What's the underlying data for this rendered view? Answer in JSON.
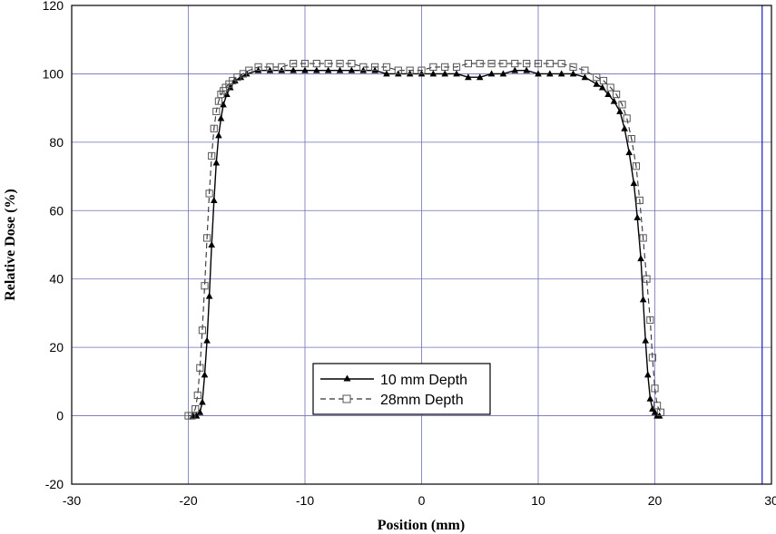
{
  "chart_data": {
    "type": "scatter",
    "title": "",
    "xlabel": "Position (mm)",
    "ylabel": "Relative Dose (%)",
    "xlim": [
      -30,
      30
    ],
    "ylim": [
      -20,
      120
    ],
    "xticks": [
      -30,
      -20,
      -10,
      0,
      10,
      20,
      30
    ],
    "yticks": [
      -20,
      0,
      20,
      40,
      60,
      80,
      100,
      120
    ],
    "grid": true,
    "grid_color": "#6f6fb8",
    "legend_position": "lower-center",
    "marker_line": {
      "x": 29.2
    },
    "series": [
      {
        "name": "10 mm Depth",
        "marker": "filled-triangle",
        "line": "solid",
        "color": "#000000",
        "x": [
          -19.6,
          -19.3,
          -19.0,
          -18.8,
          -18.6,
          -18.4,
          -18.2,
          -18.0,
          -17.8,
          -17.6,
          -17.4,
          -17.2,
          -17.0,
          -16.7,
          -16.4,
          -16.0,
          -15.5,
          -15.0,
          -14.0,
          -13.0,
          -12.0,
          -11.0,
          -10.0,
          -9.0,
          -8.0,
          -7.0,
          -6.0,
          -5.0,
          -4.0,
          -3.0,
          -2.0,
          -1.0,
          0.0,
          1.0,
          2.0,
          3.0,
          4.0,
          5.0,
          6.0,
          7.0,
          8.0,
          9.0,
          10.0,
          11.0,
          12.0,
          13.0,
          14.0,
          15.0,
          15.5,
          16.0,
          16.5,
          17.0,
          17.4,
          17.8,
          18.2,
          18.5,
          18.8,
          19.0,
          19.2,
          19.4,
          19.6,
          19.8,
          20.0,
          20.2,
          20.4
        ],
        "y": [
          0,
          0,
          1,
          4,
          12,
          22,
          35,
          50,
          63,
          74,
          82,
          87,
          91,
          94,
          96,
          98,
          99,
          100,
          101,
          101,
          101,
          101,
          101,
          101,
          101,
          101,
          101,
          101,
          101,
          100,
          100,
          100,
          100,
          100,
          100,
          100,
          99,
          99,
          100,
          100,
          101,
          101,
          100,
          100,
          100,
          100,
          99,
          97,
          96,
          94,
          92,
          89,
          84,
          77,
          68,
          58,
          46,
          34,
          22,
          12,
          5,
          2,
          1,
          0,
          0
        ]
      },
      {
        "name": "28mm Depth",
        "marker": "open-square",
        "line": "dashed",
        "color": "#333333",
        "x": [
          -20.0,
          -19.7,
          -19.4,
          -19.2,
          -19.0,
          -18.8,
          -18.6,
          -18.4,
          -18.2,
          -18.0,
          -17.8,
          -17.6,
          -17.4,
          -17.2,
          -17.0,
          -16.8,
          -16.5,
          -16.2,
          -15.8,
          -15.3,
          -14.8,
          -14.0,
          -13.0,
          -12.0,
          -11.0,
          -10.0,
          -9.0,
          -8.0,
          -7.0,
          -6.0,
          -5.0,
          -4.0,
          -3.0,
          -2.0,
          -1.0,
          0.0,
          1.0,
          2.0,
          3.0,
          4.0,
          5.0,
          6.0,
          7.0,
          8.0,
          9.0,
          10.0,
          11.0,
          12.0,
          13.0,
          14.0,
          15.0,
          15.6,
          16.2,
          16.7,
          17.2,
          17.6,
          18.0,
          18.4,
          18.7,
          19.0,
          19.3,
          19.6,
          19.8,
          20.0,
          20.2,
          20.5
        ],
        "y": [
          0,
          0,
          2,
          6,
          14,
          25,
          38,
          52,
          65,
          76,
          84,
          89,
          92,
          94,
          95,
          96,
          97,
          98,
          99,
          100,
          101,
          102,
          102,
          102,
          103,
          103,
          103,
          103,
          103,
          103,
          102,
          102,
          102,
          101,
          101,
          101,
          102,
          102,
          102,
          103,
          103,
          103,
          103,
          103,
          103,
          103,
          103,
          103,
          102,
          101,
          99,
          98,
          96,
          94,
          91,
          87,
          81,
          73,
          63,
          52,
          40,
          28,
          17,
          8,
          3,
          1
        ]
      }
    ]
  }
}
